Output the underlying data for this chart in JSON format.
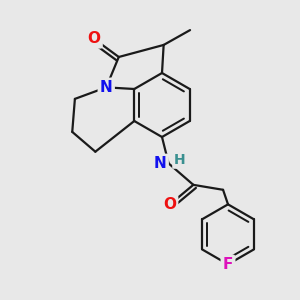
{
  "bg_color": "#e8e8e8",
  "bond_color": "#1a1a1a",
  "bond_width": 1.6,
  "atom_colors": {
    "O": "#ee1111",
    "N": "#1111ee",
    "H": "#3a9090",
    "F": "#dd11bb",
    "C": "#1a1a1a"
  },
  "font_size": 11,
  "font_size_H": 10
}
